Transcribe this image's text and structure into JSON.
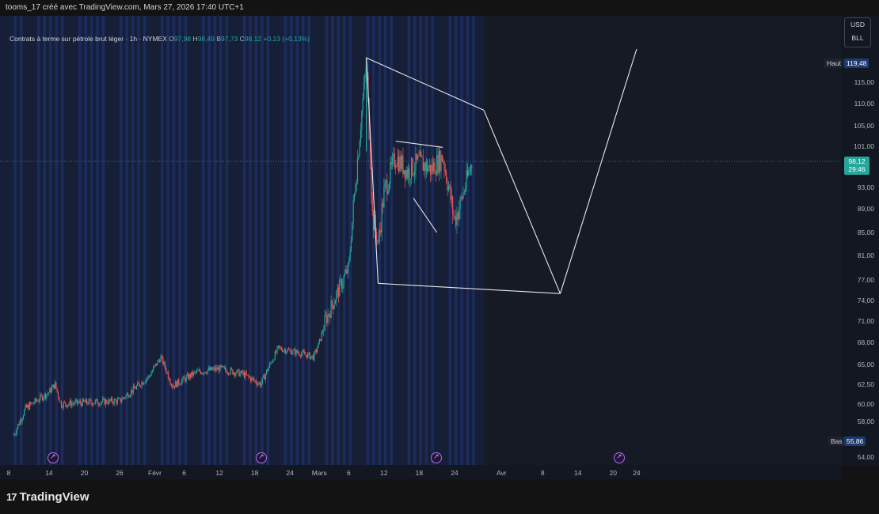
{
  "header": {
    "author_line": "tooms_17 créé avec TradingView.com, Mars 27, 2026 17:40 UTC+1"
  },
  "legend": {
    "title": "Contrats à terme sur pétrole brut léger · 1h · NYMEX",
    "o_label": "O",
    "o": "97,98",
    "h_label": "H",
    "h": "98,49",
    "b_label": "B",
    "b": "97,73",
    "c_label": "C",
    "c": "98,12",
    "change": "+0,13 (+0,13%)"
  },
  "unit_selector": {
    "currency": "USD",
    "unit": "BLL"
  },
  "high_marker": {
    "label": "Haut",
    "value": "119,48"
  },
  "low_marker": {
    "label": "Bas",
    "value": "55,86"
  },
  "current_price": {
    "value": "98,12",
    "countdown": "29:46"
  },
  "price_axis": [
    {
      "label": "115,00",
      "value": 115
    },
    {
      "label": "110,00",
      "value": 110
    },
    {
      "label": "105,00",
      "value": 105
    },
    {
      "label": "101,00",
      "value": 101
    },
    {
      "label": "93,00",
      "value": 93
    },
    {
      "label": "89,00",
      "value": 89
    },
    {
      "label": "85,00",
      "value": 85
    },
    {
      "label": "81,00",
      "value": 81
    },
    {
      "label": "77,00",
      "value": 77
    },
    {
      "label": "74,00",
      "value": 74
    },
    {
      "label": "71,00",
      "value": 71
    },
    {
      "label": "68,00",
      "value": 68
    },
    {
      "label": "65,00",
      "value": 65
    },
    {
      "label": "62,50",
      "value": 62.5
    },
    {
      "label": "60,00",
      "value": 60
    },
    {
      "label": "58,00",
      "value": 58
    },
    {
      "label": "54,00",
      "value": 54
    }
  ],
  "time_axis": [
    "8",
    "14",
    "20",
    "26",
    "Févr",
    "6",
    "12",
    "18",
    "24",
    "Mars",
    "6",
    "12",
    "18",
    "24",
    "Avr",
    "8",
    "14",
    "20",
    "24"
  ],
  "footer": {
    "brand": "TradingView",
    "logo_glyph": "17"
  },
  "colors": {
    "up": "#26a69a",
    "down": "#ef5350",
    "drawing": "#e8e8e8",
    "session_highlight": "#1e3a8a",
    "event": "#b36ef5"
  },
  "chart_data": {
    "type": "candlestick",
    "instrument": "Contrats à terme sur pétrole brut léger",
    "interval": "1h",
    "exchange": "NYMEX",
    "x_axis_ticks": [
      "8",
      "14",
      "20",
      "26",
      "Févr",
      "6",
      "12",
      "18",
      "24",
      "Mars",
      "6",
      "12",
      "18",
      "24",
      "Avr",
      "8",
      "14",
      "20",
      "24"
    ],
    "ylim": [
      53,
      122
    ],
    "price_path": [
      [
        "Jan 8",
        56.5
      ],
      [
        "Jan 10",
        59.5
      ],
      [
        "Jan 14",
        61.5
      ],
      [
        "Jan 15",
        62.5
      ],
      [
        "Jan 16",
        60.0
      ],
      [
        "Jan 20",
        60.2
      ],
      [
        "Jan 26",
        60.4
      ],
      [
        "Jan 31",
        63.5
      ],
      [
        "Feb 2",
        66.0
      ],
      [
        "Feb 4",
        62.3
      ],
      [
        "Feb 8",
        64.0
      ],
      [
        "Feb 12",
        64.5
      ],
      [
        "Feb 16",
        63.8
      ],
      [
        "Feb 19",
        62.5
      ],
      [
        "Feb 22",
        67.2
      ],
      [
        "Feb 26",
        66.5
      ],
      [
        "Feb 28",
        66.0
      ],
      [
        "Mar 1",
        68.0
      ],
      [
        "Mar 2",
        71.0
      ],
      [
        "Mar 4",
        75.0
      ],
      [
        "Mar 6",
        79.0
      ],
      [
        "Mar 7",
        92.0
      ],
      [
        "Mar 8",
        105.0
      ],
      [
        "Mar 9",
        119.48
      ],
      [
        "Mar 10",
        88.0
      ],
      [
        "Mar 11",
        83.0
      ],
      [
        "Mar 12",
        92.0
      ],
      [
        "Mar 14",
        99.0
      ],
      [
        "Mar 16",
        96.0
      ],
      [
        "Mar 18",
        98.0
      ],
      [
        "Mar 20",
        96.5
      ],
      [
        "Mar 22",
        99.0
      ],
      [
        "Mar 24",
        87.0
      ],
      [
        "Mar 25",
        90.0
      ],
      [
        "Mar 27",
        98.12
      ]
    ],
    "drawings": [
      {
        "points": [
          [
            "Mar 9",
            120.0
          ],
          [
            "Mar 29",
            108.5
          ]
        ]
      },
      {
        "points": [
          [
            "Mar 9",
            120.0
          ],
          [
            "Mar 11",
            76.5
          ]
        ]
      },
      {
        "points": [
          [
            "Mar 11",
            76.5
          ],
          [
            "Apr 11",
            75.0
          ]
        ]
      },
      {
        "points": [
          [
            "Mar 29",
            108.5
          ],
          [
            "Apr 11",
            75.0
          ]
        ]
      },
      {
        "points": [
          [
            "Apr 11",
            75.0
          ],
          [
            "Apr 24",
            124.0
          ]
        ]
      },
      {
        "points": [
          [
            "Mar 14",
            102.0
          ],
          [
            "Mar 22",
            100.8
          ]
        ]
      },
      {
        "points": [
          [
            "Mar 17",
            91.0
          ],
          [
            "Mar 21",
            85.0
          ]
        ]
      }
    ]
  }
}
